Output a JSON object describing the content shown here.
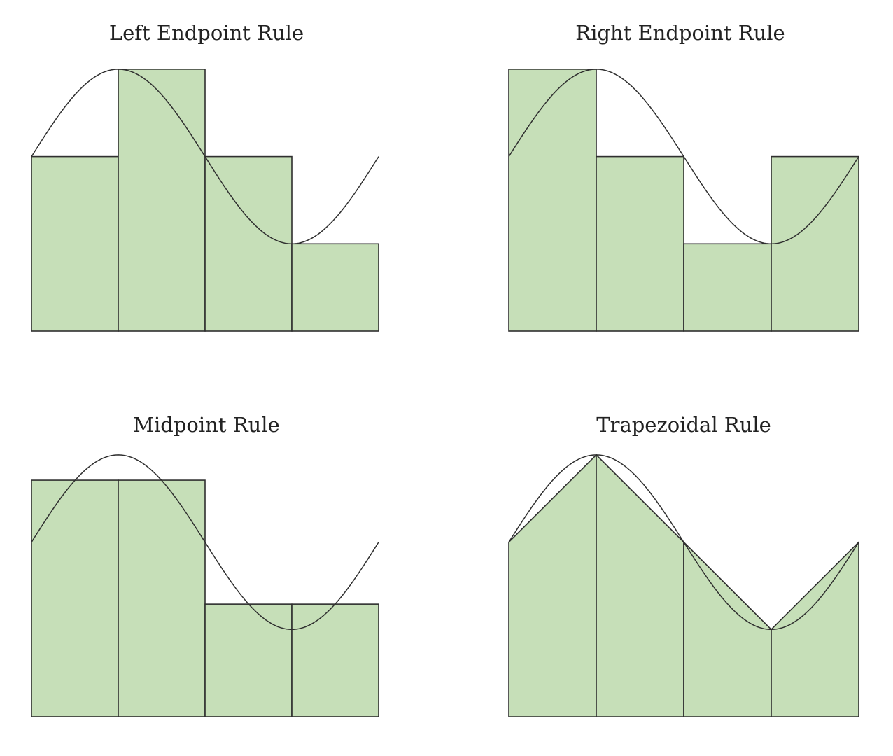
{
  "colors": {
    "fill": "#c6dfb8",
    "stroke": "#2f2f2f",
    "curve": "#2f2f2f",
    "background": "#ffffff"
  },
  "panels": [
    {
      "title": "Left Endpoint Rule",
      "method": "left",
      "heights": [
        2,
        3,
        2,
        1
      ]
    },
    {
      "title": "Right Endpoint Rule",
      "method": "right",
      "heights": [
        3,
        2,
        1,
        2
      ]
    },
    {
      "title": "Midpoint Rule",
      "method": "midpoint",
      "heights": [
        2.71,
        2.71,
        1.29,
        1.29
      ]
    },
    {
      "title": "Trapezoidal Rule",
      "method": "trapezoid",
      "heights": [
        2,
        3,
        2,
        1,
        2
      ]
    }
  ]
}
